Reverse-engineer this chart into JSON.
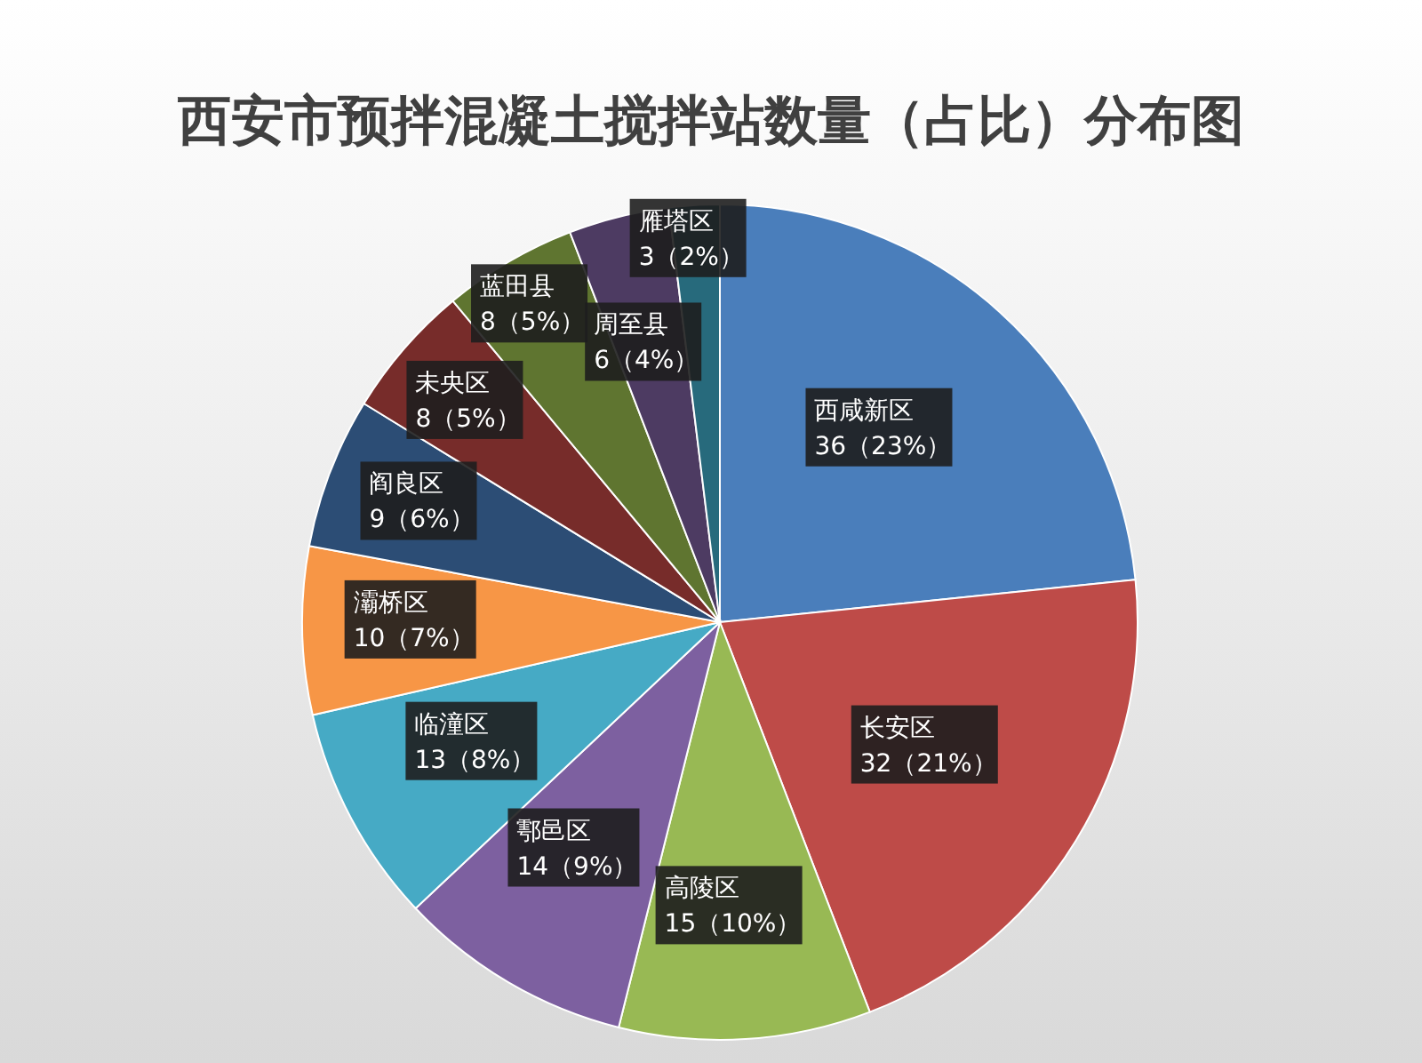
{
  "chart_data": {
    "type": "pie",
    "title": "西安市预拌混凝土搅拌站数量（占比）分布图",
    "categories": [
      "西咸新区",
      "长安区",
      "高陵区",
      "鄠邑区",
      "临潼区",
      "灞桥区",
      "阎良区",
      "未央区",
      "蓝田县",
      "周至县",
      "雁塔区"
    ],
    "values": [
      36,
      32,
      15,
      14,
      13,
      10,
      9,
      8,
      8,
      6,
      3
    ],
    "value_labels": [
      "36（23%）",
      "32（21%）",
      "15（10%）",
      "14（9%）",
      "13（8%）",
      "10（7%）",
      "9（6%）",
      "8（5%）",
      "8（5%）",
      "6（4%）",
      "3（2%）"
    ],
    "colors": [
      "#4a7ebb",
      "#be4b48",
      "#98b954",
      "#7d60a0",
      "#46aac5",
      "#f79646",
      "#2c4d75",
      "#772c2a",
      "#5f7530",
      "#4d3b62",
      "#276a7c"
    ],
    "legend": false
  }
}
